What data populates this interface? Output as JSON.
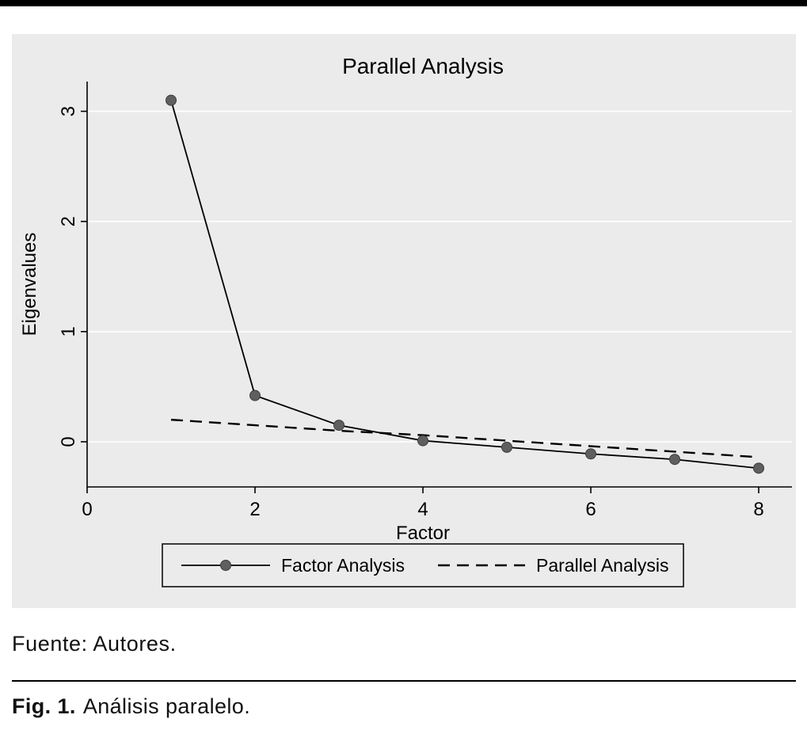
{
  "captions": {
    "source": "Fuente: Autores.",
    "fig_label": "Fig. 1.",
    "fig_text": "Análisis paralelo."
  },
  "chart_data": {
    "type": "line",
    "title": "Parallel Analysis",
    "xlabel": "Factor",
    "ylabel": "Eigenvalues",
    "x_ticks": [
      0,
      2,
      4,
      6,
      8
    ],
    "y_ticks": [
      0,
      1,
      2,
      3
    ],
    "xlim": [
      0,
      8
    ],
    "ylim": [
      -0.41,
      3.27
    ],
    "grid": "horizontal-white",
    "legend_position": "bottom-box",
    "series": [
      {
        "name": "Factor Analysis",
        "style": "solid-markers",
        "x": [
          1,
          2,
          3,
          4,
          5,
          6,
          7,
          8
        ],
        "values": [
          3.1,
          0.42,
          0.15,
          0.01,
          -0.05,
          -0.11,
          -0.16,
          -0.24
        ]
      },
      {
        "name": "Parallel Analysis",
        "style": "dashed",
        "x": [
          1,
          2,
          3,
          4,
          5,
          6,
          7,
          8
        ],
        "values": [
          0.2,
          0.15,
          0.1,
          0.06,
          0.01,
          -0.04,
          -0.09,
          -0.14
        ]
      }
    ],
    "colors": {
      "background": "#ebebeb",
      "grid": "#ffffff",
      "line": "#000000",
      "marker": "#5f5f5f",
      "marker_edge": "#3c3c3c"
    }
  }
}
